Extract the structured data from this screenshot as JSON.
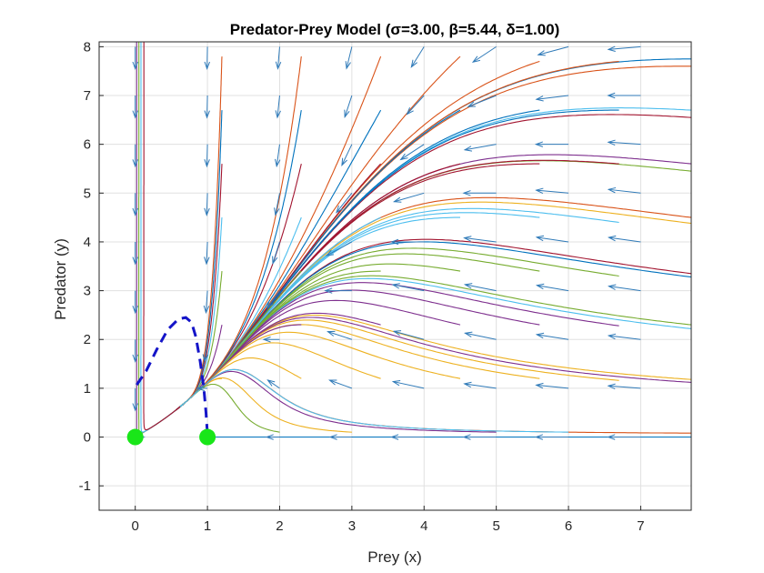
{
  "chart_data": {
    "type": "line",
    "title": "Predator-Prey Model (σ=3.00, β=5.44, δ=1.00)",
    "xlabel": "Prey (x)",
    "ylabel": "Predator (y)",
    "xlim": [
      -0.5,
      7.7
    ],
    "ylim": [
      -1.5,
      8.1
    ],
    "xticks": [
      0,
      1,
      2,
      3,
      4,
      5,
      6,
      7
    ],
    "yticks": [
      -1,
      0,
      1,
      2,
      3,
      4,
      5,
      6,
      7,
      8
    ],
    "grid": true,
    "legend": "none",
    "parameters": {
      "sigma": 3.0,
      "beta": 5.44,
      "delta": 1.0
    },
    "series_colors": [
      "#0072bd",
      "#d95319",
      "#edb120",
      "#7e2f8e",
      "#77ac30",
      "#4dbeee",
      "#a2142f"
    ],
    "trajectory_origins": [
      [
        7.7,
        0.0
      ],
      [
        7.7,
        0.08
      ],
      [
        7.7,
        1.18
      ],
      [
        7.7,
        1.12
      ],
      [
        7.7,
        2.3
      ],
      [
        7.7,
        2.22
      ],
      [
        7.7,
        3.35
      ],
      [
        7.7,
        3.28
      ],
      [
        7.7,
        4.5
      ],
      [
        7.7,
        4.38
      ],
      [
        7.7,
        5.6
      ],
      [
        7.7,
        5.45
      ],
      [
        7.7,
        6.7
      ],
      [
        7.7,
        6.55
      ],
      [
        7.7,
        7.75
      ],
      [
        7.7,
        7.6
      ],
      [
        6.7,
        1.16
      ],
      [
        6.7,
        2.28
      ],
      [
        6.7,
        3.3
      ],
      [
        6.7,
        4.4
      ],
      [
        6.7,
        5.6
      ],
      [
        6.7,
        6.7
      ],
      [
        6.7,
        7.7
      ],
      [
        5.6,
        1.2
      ],
      [
        5.6,
        2.3
      ],
      [
        5.6,
        3.4
      ],
      [
        5.6,
        4.5
      ],
      [
        5.6,
        5.6
      ],
      [
        5.6,
        6.7
      ],
      [
        5.6,
        7.7
      ],
      [
        4.5,
        1.2
      ],
      [
        4.5,
        2.3
      ],
      [
        4.5,
        3.4
      ],
      [
        4.5,
        4.5
      ],
      [
        4.5,
        5.6
      ],
      [
        4.5,
        6.7
      ],
      [
        4.5,
        7.8
      ],
      [
        3.4,
        1.2
      ],
      [
        3.4,
        2.3
      ],
      [
        3.4,
        3.4
      ],
      [
        3.4,
        4.5
      ],
      [
        3.4,
        5.6
      ],
      [
        3.4,
        6.7
      ],
      [
        3.4,
        7.8
      ],
      [
        2.3,
        1.2
      ],
      [
        2.3,
        2.3
      ],
      [
        2.3,
        3.4
      ],
      [
        2.3,
        4.5
      ],
      [
        2.3,
        5.6
      ],
      [
        2.3,
        6.7
      ],
      [
        2.3,
        7.8
      ],
      [
        1.2,
        1.2
      ],
      [
        1.2,
        2.3
      ],
      [
        1.2,
        3.4
      ],
      [
        1.2,
        4.5
      ],
      [
        1.2,
        5.6
      ],
      [
        1.2,
        6.7
      ],
      [
        1.2,
        7.8
      ],
      [
        3.0,
        0.1
      ],
      [
        5.0,
        0.1
      ],
      [
        2.0,
        0.1
      ],
      [
        6.0,
        0.1
      ]
    ],
    "separatrix": [
      [
        0.02,
        1.07
      ],
      [
        0.15,
        1.35
      ],
      [
        0.3,
        1.8
      ],
      [
        0.45,
        2.2
      ],
      [
        0.6,
        2.42
      ],
      [
        0.7,
        2.45
      ],
      [
        0.78,
        2.35
      ],
      [
        0.84,
        2.05
      ],
      [
        0.9,
        1.55
      ],
      [
        0.95,
        1.0
      ],
      [
        0.98,
        0.5
      ],
      [
        1.0,
        0.05
      ]
    ],
    "equilibria": [
      [
        0,
        0
      ],
      [
        1,
        0
      ]
    ]
  }
}
